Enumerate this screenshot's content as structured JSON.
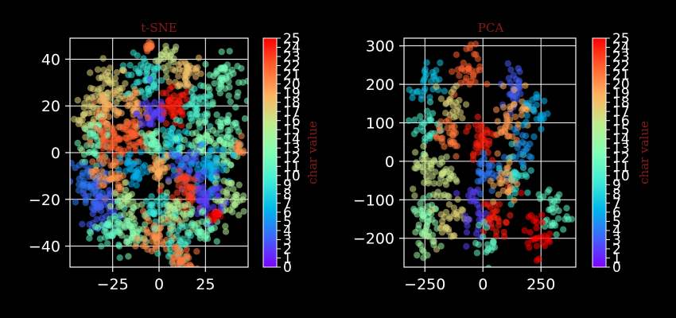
{
  "chart_data": [
    {
      "type": "scatter",
      "title": "t-SNE",
      "xlim": [
        -48,
        48
      ],
      "ylim": [
        -49,
        49
      ],
      "xticks": [
        -25,
        0,
        25
      ],
      "xtick_labels": [
        "−25",
        "0",
        "25"
      ],
      "yticks": [
        -40,
        -20,
        0,
        20,
        40
      ],
      "ytick_labels": [
        "−40",
        "−20",
        "0",
        "20",
        "40"
      ],
      "grid": true,
      "colorbar": {
        "label": "char value",
        "min": 0,
        "max": 25,
        "cmap": "rainbow"
      },
      "clusters": [
        {
          "x": 5,
          "y": 41,
          "r": 6,
          "value": 16
        },
        {
          "x": -5,
          "y": 45,
          "r": 2,
          "value": 21
        },
        {
          "x": -27,
          "y": 28,
          "r": 9,
          "value": 17
        },
        {
          "x": -8,
          "y": 32,
          "r": 9,
          "value": 9
        },
        {
          "x": 15,
          "y": 34,
          "r": 8,
          "value": 18
        },
        {
          "x": 34,
          "y": 32,
          "r": 9,
          "value": 12
        },
        {
          "x": -37,
          "y": 16,
          "r": 8,
          "value": 17
        },
        {
          "x": -28,
          "y": 17,
          "r": 7,
          "value": 19
        },
        {
          "x": -14,
          "y": 18,
          "r": 7,
          "value": 19
        },
        {
          "x": -3,
          "y": 17,
          "r": 8,
          "value": 2
        },
        {
          "x": 8,
          "y": 19,
          "r": 8,
          "value": 24
        },
        {
          "x": 21,
          "y": 18,
          "r": 8,
          "value": 10
        },
        {
          "x": 37,
          "y": 12,
          "r": 7,
          "value": 12
        },
        {
          "x": -34,
          "y": 5,
          "r": 8,
          "value": 12
        },
        {
          "x": -27,
          "y": 4,
          "r": 8,
          "value": 22
        },
        {
          "x": -15,
          "y": 6,
          "r": 8,
          "value": 22
        },
        {
          "x": -3,
          "y": 4,
          "r": 7,
          "value": 12
        },
        {
          "x": 9,
          "y": 5,
          "r": 8,
          "value": 8
        },
        {
          "x": 22,
          "y": 5,
          "r": 8,
          "value": 13
        },
        {
          "x": 35,
          "y": 0,
          "r": 7,
          "value": 13
        },
        {
          "x": 43,
          "y": 2,
          "r": 4,
          "value": 20
        },
        {
          "x": -39,
          "y": -14,
          "r": 9,
          "value": 4
        },
        {
          "x": -27,
          "y": -10,
          "r": 8,
          "value": 20
        },
        {
          "x": -13,
          "y": -8,
          "r": 7,
          "value": 6
        },
        {
          "x": 1,
          "y": -8,
          "r": 7,
          "value": 19
        },
        {
          "x": 15,
          "y": -6,
          "r": 8,
          "value": 3
        },
        {
          "x": 27,
          "y": -7,
          "r": 9,
          "value": 6
        },
        {
          "x": 38,
          "y": -20,
          "r": 8,
          "value": 15
        },
        {
          "x": 17,
          "y": -17,
          "r": 8,
          "value": 23
        },
        {
          "x": -32,
          "y": -23,
          "r": 8,
          "value": 3
        },
        {
          "x": -17,
          "y": -22,
          "r": 7,
          "value": 15
        },
        {
          "x": -2,
          "y": -24,
          "r": 7,
          "value": 9
        },
        {
          "x": 9,
          "y": -27,
          "r": 8,
          "value": 15
        },
        {
          "x": 26,
          "y": -20,
          "r": 8,
          "value": 2
        },
        {
          "x": -26,
          "y": -34,
          "r": 8,
          "value": 11
        },
        {
          "x": -15,
          "y": -35,
          "r": 8,
          "value": 13
        },
        {
          "x": -2,
          "y": -36,
          "r": 8,
          "value": 20
        },
        {
          "x": 11,
          "y": -38,
          "r": 8,
          "value": 10
        },
        {
          "x": 24,
          "y": -31,
          "r": 7,
          "value": 12
        },
        {
          "x": 11,
          "y": -47,
          "r": 8,
          "value": 21
        },
        {
          "x": 30,
          "y": -27,
          "r": 2,
          "value": 25
        }
      ]
    },
    {
      "type": "scatter",
      "title": "PCA",
      "xlim": [
        -340,
        400
      ],
      "ylim": [
        -275,
        320
      ],
      "xticks": [
        -250,
        0,
        250
      ],
      "xtick_labels": [
        "−250",
        "0",
        "250"
      ],
      "yticks": [
        -200,
        -100,
        0,
        100,
        200,
        300
      ],
      "ytick_labels": [
        "−200",
        "−100",
        "0",
        "100",
        "200",
        "300"
      ],
      "grid": true,
      "colorbar": {
        "label": "char value",
        "min": 0,
        "max": 25,
        "cmap": "rainbow"
      },
      "clusters": [
        {
          "x": -75,
          "y": 235,
          "r": 60,
          "value": 22
        },
        {
          "x": -245,
          "y": 195,
          "r": 55,
          "value": 7
        },
        {
          "x": -130,
          "y": 150,
          "r": 50,
          "value": 17
        },
        {
          "x": 135,
          "y": 190,
          "r": 55,
          "value": 3
        },
        {
          "x": 155,
          "y": 145,
          "r": 50,
          "value": 19
        },
        {
          "x": 230,
          "y": 130,
          "r": 50,
          "value": 6
        },
        {
          "x": -240,
          "y": 90,
          "r": 55,
          "value": 10
        },
        {
          "x": -150,
          "y": 70,
          "r": 55,
          "value": 21
        },
        {
          "x": -5,
          "y": 60,
          "r": 60,
          "value": 24
        },
        {
          "x": 110,
          "y": 80,
          "r": 50,
          "value": 20
        },
        {
          "x": -240,
          "y": -20,
          "r": 60,
          "value": 16
        },
        {
          "x": -160,
          "y": -40,
          "r": 55,
          "value": 16
        },
        {
          "x": 20,
          "y": -20,
          "r": 55,
          "value": 4
        },
        {
          "x": 140,
          "y": -30,
          "r": 55,
          "value": 9
        },
        {
          "x": 170,
          "y": 30,
          "r": 45,
          "value": 5
        },
        {
          "x": -250,
          "y": -140,
          "r": 60,
          "value": 13
        },
        {
          "x": -150,
          "y": -150,
          "r": 60,
          "value": 17
        },
        {
          "x": -40,
          "y": -130,
          "r": 55,
          "value": 2
        },
        {
          "x": 60,
          "y": -150,
          "r": 55,
          "value": 24
        },
        {
          "x": 100,
          "y": -60,
          "r": 50,
          "value": 19
        },
        {
          "x": 300,
          "y": -130,
          "r": 60,
          "value": 11
        },
        {
          "x": 225,
          "y": -190,
          "r": 55,
          "value": 25
        },
        {
          "x": 20,
          "y": -215,
          "r": 45,
          "value": 11
        },
        {
          "x": -250,
          "y": -210,
          "r": 45,
          "value": 14
        }
      ]
    }
  ]
}
